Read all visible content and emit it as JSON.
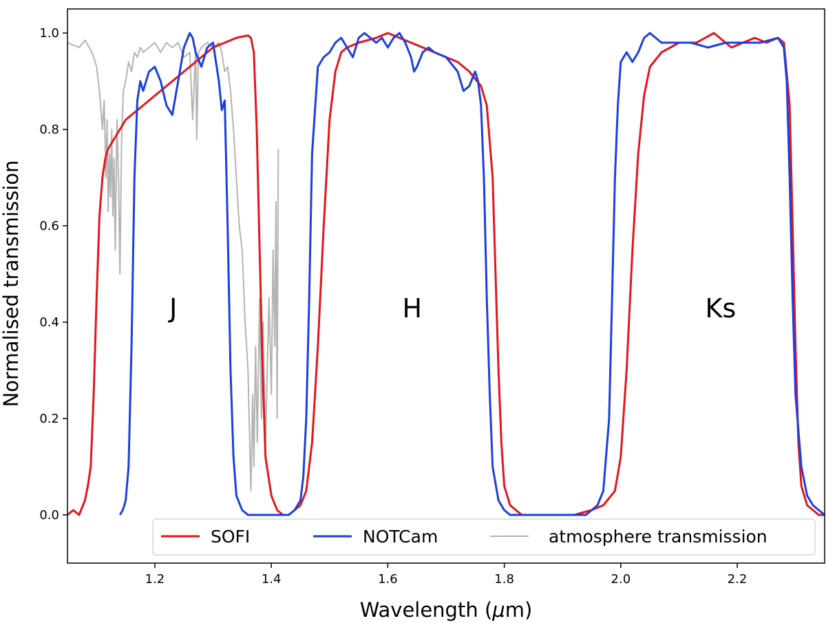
{
  "chart_data": {
    "type": "line",
    "title": "",
    "xlabel_text": "Wavelength (",
    "xlabel_mu": "μ",
    "xlabel_unit": "m)",
    "xlabel": "Wavelength (μm)",
    "ylabel": "Normalised transmission",
    "xlim": [
      1.05,
      2.35
    ],
    "ylim": [
      -0.1,
      1.05
    ],
    "xticks": [
      {
        "value": 1.2,
        "label": "1.2"
      },
      {
        "value": 1.4,
        "label": "1.4"
      },
      {
        "value": 1.6,
        "label": "1.6"
      },
      {
        "value": 1.8,
        "label": "1.8"
      },
      {
        "value": 2.0,
        "label": "2.0"
      },
      {
        "value": 2.2,
        "label": "2.2"
      }
    ],
    "yticks": [
      {
        "value": 0.0,
        "label": "0.0"
      },
      {
        "value": 0.2,
        "label": "0.2"
      },
      {
        "value": 0.4,
        "label": "0.4"
      },
      {
        "value": 0.6,
        "label": "0.6"
      },
      {
        "value": 0.8,
        "label": "0.8"
      },
      {
        "value": 1.0,
        "label": "1.0"
      }
    ],
    "grid": false,
    "legend_position": "bottom-right",
    "annotations": [
      {
        "text": "J",
        "x": 1.225,
        "y": 0.41
      },
      {
        "text": "H",
        "x": 1.625,
        "y": 0.41
      },
      {
        "text": "Ks",
        "x": 2.145,
        "y": 0.41
      }
    ],
    "series": [
      {
        "name": "atmosphere transmission",
        "color": "#b3b3b3",
        "x": [
          1.05,
          1.06,
          1.07,
          1.08,
          1.09,
          1.095,
          1.1,
          1.105,
          1.11,
          1.113,
          1.116,
          1.118,
          1.12,
          1.122,
          1.124,
          1.126,
          1.128,
          1.13,
          1.132,
          1.135,
          1.138,
          1.14,
          1.143,
          1.146,
          1.15,
          1.155,
          1.16,
          1.165,
          1.17,
          1.175,
          1.18,
          1.19,
          1.2,
          1.21,
          1.22,
          1.23,
          1.24,
          1.25,
          1.26,
          1.265,
          1.27,
          1.272,
          1.275,
          1.28,
          1.29,
          1.3,
          1.31,
          1.315,
          1.32,
          1.325,
          1.33,
          1.335,
          1.34,
          1.345,
          1.35,
          1.355,
          1.36,
          1.362,
          1.365,
          1.368,
          1.37,
          1.373,
          1.376,
          1.38,
          1.383,
          1.386,
          1.39,
          1.393,
          1.396,
          1.4,
          1.403,
          1.406,
          1.408,
          1.41,
          1.412
        ],
        "y": [
          0.98,
          0.975,
          0.97,
          0.985,
          0.965,
          0.95,
          0.93,
          0.88,
          0.8,
          0.86,
          0.7,
          0.82,
          0.63,
          0.75,
          0.66,
          0.8,
          0.62,
          0.74,
          0.55,
          0.82,
          0.68,
          0.5,
          0.78,
          0.88,
          0.9,
          0.94,
          0.92,
          0.96,
          0.95,
          0.97,
          0.96,
          0.97,
          0.98,
          0.96,
          0.98,
          0.97,
          0.98,
          0.95,
          0.96,
          0.82,
          0.97,
          0.78,
          0.96,
          0.97,
          0.98,
          0.97,
          0.98,
          0.96,
          0.92,
          0.93,
          0.88,
          0.8,
          0.7,
          0.6,
          0.55,
          0.4,
          0.3,
          0.2,
          0.05,
          0.25,
          0.1,
          0.35,
          0.15,
          0.45,
          0.2,
          0.4,
          0.14,
          0.3,
          0.45,
          0.25,
          0.55,
          0.35,
          0.65,
          0.2,
          0.76
        ]
      },
      {
        "name": "SOFI",
        "color": "#e3151a",
        "x": [
          1.05,
          1.06,
          1.07,
          1.08,
          1.085,
          1.09,
          1.095,
          1.1,
          1.105,
          1.11,
          1.115,
          1.12,
          1.13,
          1.14,
          1.15,
          1.16,
          1.18,
          1.2,
          1.22,
          1.24,
          1.26,
          1.28,
          1.3,
          1.32,
          1.34,
          1.36,
          1.365,
          1.37,
          1.375,
          1.38,
          1.385,
          1.39,
          1.4,
          1.41,
          1.42,
          1.43,
          1.44,
          1.45,
          1.46,
          1.47,
          1.48,
          1.49,
          1.5,
          1.51,
          1.52,
          1.53,
          1.55,
          1.58,
          1.6,
          1.62,
          1.64,
          1.66,
          1.68,
          1.7,
          1.72,
          1.74,
          1.76,
          1.77,
          1.78,
          1.785,
          1.79,
          1.795,
          1.8,
          1.81,
          1.82,
          1.83,
          1.85,
          1.9,
          1.92,
          1.95,
          1.97,
          1.99,
          2.0,
          2.01,
          2.02,
          2.03,
          2.04,
          2.05,
          2.07,
          2.1,
          2.13,
          2.16,
          2.19,
          2.21,
          2.23,
          2.25,
          2.27,
          2.28,
          2.29,
          2.295,
          2.3,
          2.305,
          2.31,
          2.32,
          2.33,
          2.34,
          2.35
        ],
        "y": [
          0.0,
          0.01,
          0.0,
          0.03,
          0.06,
          0.1,
          0.25,
          0.45,
          0.62,
          0.7,
          0.74,
          0.76,
          0.78,
          0.8,
          0.82,
          0.83,
          0.85,
          0.87,
          0.89,
          0.91,
          0.93,
          0.95,
          0.97,
          0.98,
          0.99,
          0.995,
          0.99,
          0.96,
          0.8,
          0.55,
          0.3,
          0.12,
          0.04,
          0.01,
          0.0,
          0.0,
          0.01,
          0.02,
          0.05,
          0.15,
          0.35,
          0.6,
          0.82,
          0.92,
          0.96,
          0.97,
          0.98,
          0.99,
          1.0,
          0.99,
          0.98,
          0.97,
          0.96,
          0.95,
          0.94,
          0.92,
          0.89,
          0.85,
          0.7,
          0.5,
          0.3,
          0.15,
          0.06,
          0.02,
          0.01,
          0.0,
          0.0,
          0.0,
          0.0,
          0.01,
          0.02,
          0.05,
          0.12,
          0.3,
          0.55,
          0.75,
          0.87,
          0.93,
          0.96,
          0.98,
          0.98,
          1.0,
          0.97,
          0.98,
          0.99,
          0.98,
          0.99,
          0.98,
          0.85,
          0.6,
          0.35,
          0.15,
          0.06,
          0.02,
          0.01,
          0.0,
          0.0
        ]
      },
      {
        "name": "NOTCam",
        "color": "#1a3fe0",
        "x": [
          1.14,
          1.145,
          1.15,
          1.155,
          1.16,
          1.165,
          1.17,
          1.175,
          1.18,
          1.19,
          1.2,
          1.21,
          1.22,
          1.23,
          1.24,
          1.25,
          1.26,
          1.265,
          1.27,
          1.28,
          1.29,
          1.3,
          1.31,
          1.315,
          1.32,
          1.325,
          1.33,
          1.335,
          1.34,
          1.35,
          1.36,
          1.43,
          1.44,
          1.45,
          1.455,
          1.46,
          1.465,
          1.47,
          1.48,
          1.49,
          1.5,
          1.51,
          1.52,
          1.53,
          1.54,
          1.55,
          1.56,
          1.57,
          1.58,
          1.59,
          1.6,
          1.61,
          1.62,
          1.63,
          1.64,
          1.645,
          1.65,
          1.66,
          1.67,
          1.68,
          1.7,
          1.72,
          1.73,
          1.74,
          1.75,
          1.755,
          1.76,
          1.765,
          1.77,
          1.775,
          1.78,
          1.79,
          1.8,
          1.81,
          1.82,
          1.94,
          1.95,
          1.96,
          1.97,
          1.98,
          1.985,
          1.99,
          1.995,
          2.0,
          2.01,
          2.02,
          2.03,
          2.04,
          2.05,
          2.06,
          2.07,
          2.09,
          2.12,
          2.15,
          2.18,
          2.21,
          2.24,
          2.27,
          2.28,
          2.285,
          2.29,
          2.295,
          2.3,
          2.31,
          2.32,
          2.33,
          2.34,
          2.35
        ],
        "y": [
          0.0,
          0.01,
          0.03,
          0.1,
          0.35,
          0.7,
          0.86,
          0.9,
          0.88,
          0.92,
          0.93,
          0.9,
          0.85,
          0.83,
          0.9,
          0.97,
          1.0,
          0.99,
          0.96,
          0.93,
          0.97,
          0.98,
          0.9,
          0.84,
          0.86,
          0.6,
          0.3,
          0.12,
          0.04,
          0.01,
          0.0,
          0.0,
          0.01,
          0.03,
          0.08,
          0.2,
          0.45,
          0.75,
          0.93,
          0.95,
          0.96,
          0.98,
          0.99,
          0.97,
          0.95,
          0.99,
          1.0,
          0.99,
          0.98,
          0.99,
          0.97,
          0.99,
          1.0,
          0.98,
          0.95,
          0.92,
          0.93,
          0.96,
          0.97,
          0.96,
          0.95,
          0.92,
          0.88,
          0.89,
          0.92,
          0.9,
          0.85,
          0.7,
          0.45,
          0.25,
          0.1,
          0.03,
          0.01,
          0.0,
          0.0,
          0.0,
          0.01,
          0.02,
          0.05,
          0.2,
          0.45,
          0.7,
          0.85,
          0.94,
          0.96,
          0.94,
          0.96,
          0.99,
          1.0,
          0.99,
          0.98,
          0.98,
          0.98,
          0.97,
          0.98,
          0.98,
          0.98,
          0.99,
          0.97,
          0.9,
          0.7,
          0.45,
          0.25,
          0.1,
          0.04,
          0.02,
          0.01,
          0.0
        ]
      }
    ]
  }
}
